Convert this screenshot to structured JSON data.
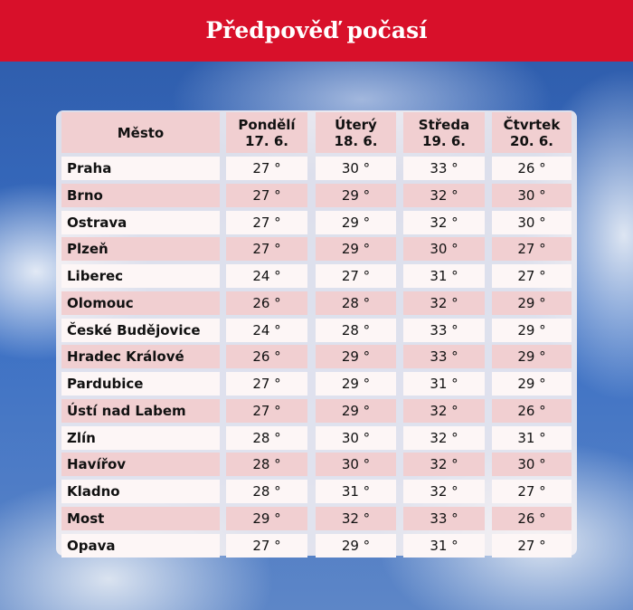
{
  "header": {
    "title": "Předpověď počasí"
  },
  "table": {
    "city_header": "Město",
    "columns": [
      {
        "day": "Pondělí",
        "date": "17. 6."
      },
      {
        "day": "Úterý",
        "date": "18. 6."
      },
      {
        "day": "Středa",
        "date": "19. 6."
      },
      {
        "day": "Čtvrtek",
        "date": "20. 6."
      }
    ],
    "rows": [
      [
        "Praha",
        "27 °",
        "30 °",
        "33 °",
        "26 °"
      ],
      [
        "Brno",
        "27 °",
        "29 °",
        "32 °",
        "30 °"
      ],
      [
        "Ostrava",
        "27 °",
        "29 °",
        "32 °",
        "30 °"
      ],
      [
        "Plzeň",
        "27 °",
        "29 °",
        "30 °",
        "27 °"
      ],
      [
        "Liberec",
        "24 °",
        "27 °",
        "31 °",
        "27 °"
      ],
      [
        "Olomouc",
        "26 °",
        "28 °",
        "32 °",
        "29 °"
      ],
      [
        "České Budějovice",
        "24 °",
        "28 °",
        "33 °",
        "29 °"
      ],
      [
        "Hradec Králové",
        "26 °",
        "29 °",
        "33 °",
        "29 °"
      ],
      [
        "Pardubice",
        "27 °",
        "29 °",
        "31 °",
        "29 °"
      ],
      [
        "Ústí nad Labem",
        "27 °",
        "29 °",
        "32 °",
        "26 °"
      ],
      [
        "Zlín",
        "28 °",
        "30 °",
        "32 °",
        "31 °"
      ],
      [
        "Havířov",
        "28 °",
        "30 °",
        "32 °",
        "30 °"
      ],
      [
        "Kladno",
        "28 °",
        "31 °",
        "32 °",
        "27 °"
      ],
      [
        "Most",
        "29 °",
        "32 °",
        "33 °",
        "26 °"
      ],
      [
        "Opava",
        "27 °",
        "29 °",
        "31 °",
        "27 °"
      ]
    ]
  }
}
